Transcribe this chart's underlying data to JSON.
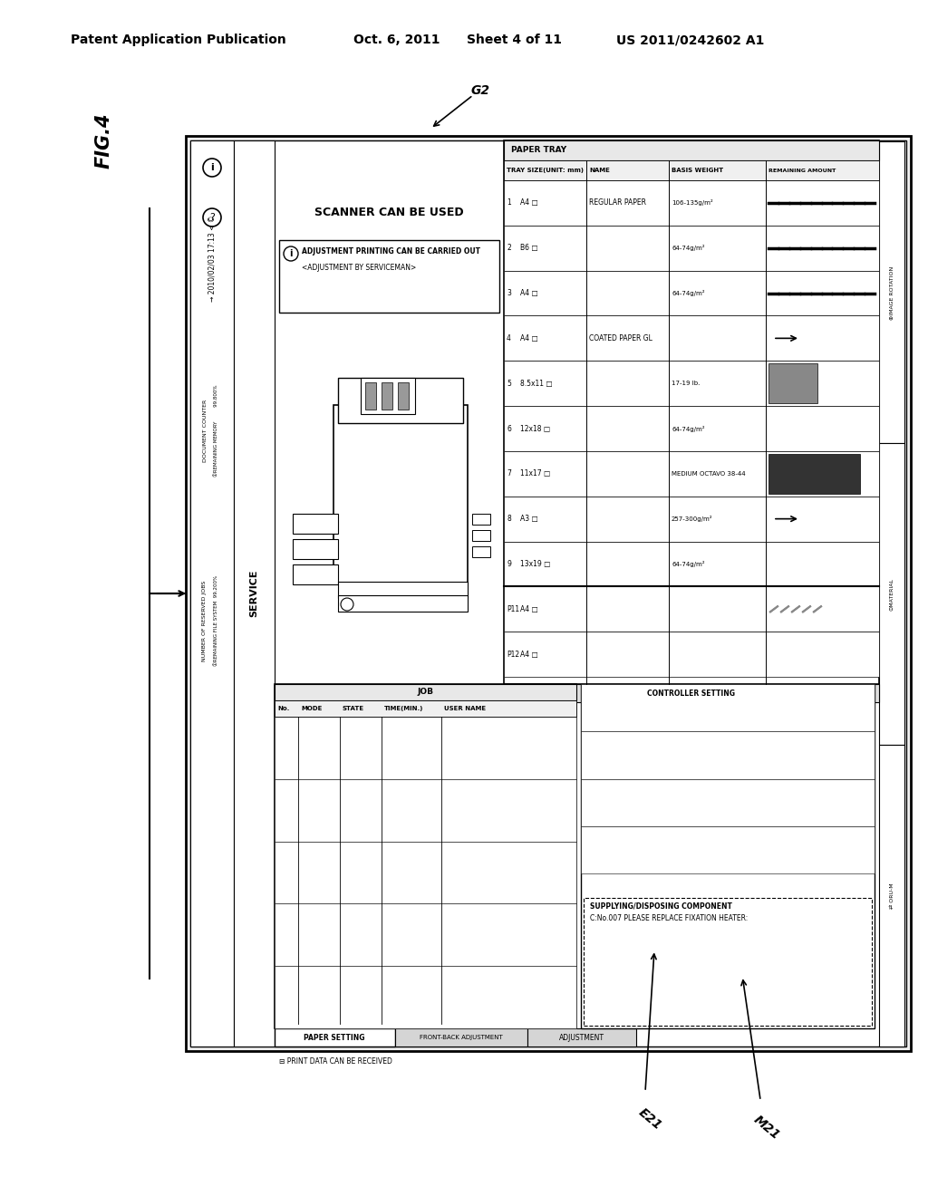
{
  "bg_color": "#ffffff",
  "header_left": "Patent Application Publication",
  "header_date": "Oct. 6, 2011",
  "header_sheet": "Sheet 4 of 11",
  "header_patent": "US 2011/0242602 A1",
  "fig_label": "FIG.4",
  "label_G2": "G2",
  "label_E21": "E21",
  "label_M21": "M21"
}
